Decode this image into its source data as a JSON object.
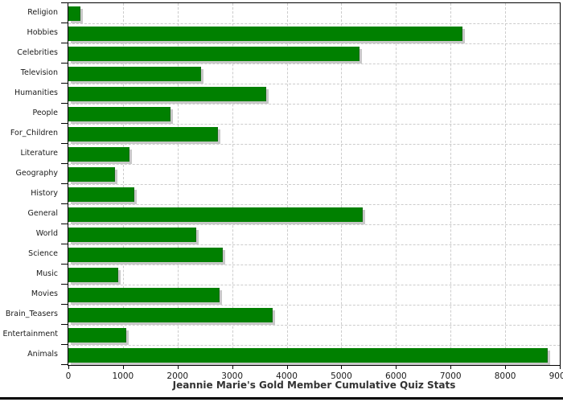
{
  "chart_data": {
    "type": "bar",
    "orientation": "horizontal",
    "title": "Jeannie Marie's Gold Member Cumulative Quiz Stats",
    "xlabel": "",
    "ylabel": "",
    "categories": [
      "Religion",
      "Hobbies",
      "Celebrities",
      "Television",
      "Humanities",
      "People",
      "For_Children",
      "Literature",
      "Geography",
      "History",
      "General",
      "World",
      "Science",
      "Music",
      "Movies",
      "Brain_Teasers",
      "Entertainment",
      "Animals"
    ],
    "values": [
      210,
      7200,
      5320,
      2420,
      3610,
      1850,
      2720,
      1100,
      840,
      1190,
      5380,
      2330,
      2820,
      900,
      2750,
      3720,
      1050,
      8770
    ],
    "xlim": [
      0,
      9000
    ],
    "x_ticks": [
      0,
      1000,
      2000,
      3000,
      4000,
      5000,
      6000,
      7000,
      8000,
      9000
    ],
    "x_tick_labels": [
      "0",
      "1000",
      "2000",
      "3000",
      "4000",
      "5000",
      "6000",
      "7000",
      "8000",
      "9000"
    ],
    "grid": "dashed",
    "legend": "none",
    "colors": {
      "bar_fill": "#008000",
      "bar_shadow": "#c8c8c8",
      "gridline": "#cccccc",
      "axis": "#000000",
      "label_text": "#1a1a1a",
      "title_text": "#333333",
      "background": "#ffffff"
    }
  }
}
